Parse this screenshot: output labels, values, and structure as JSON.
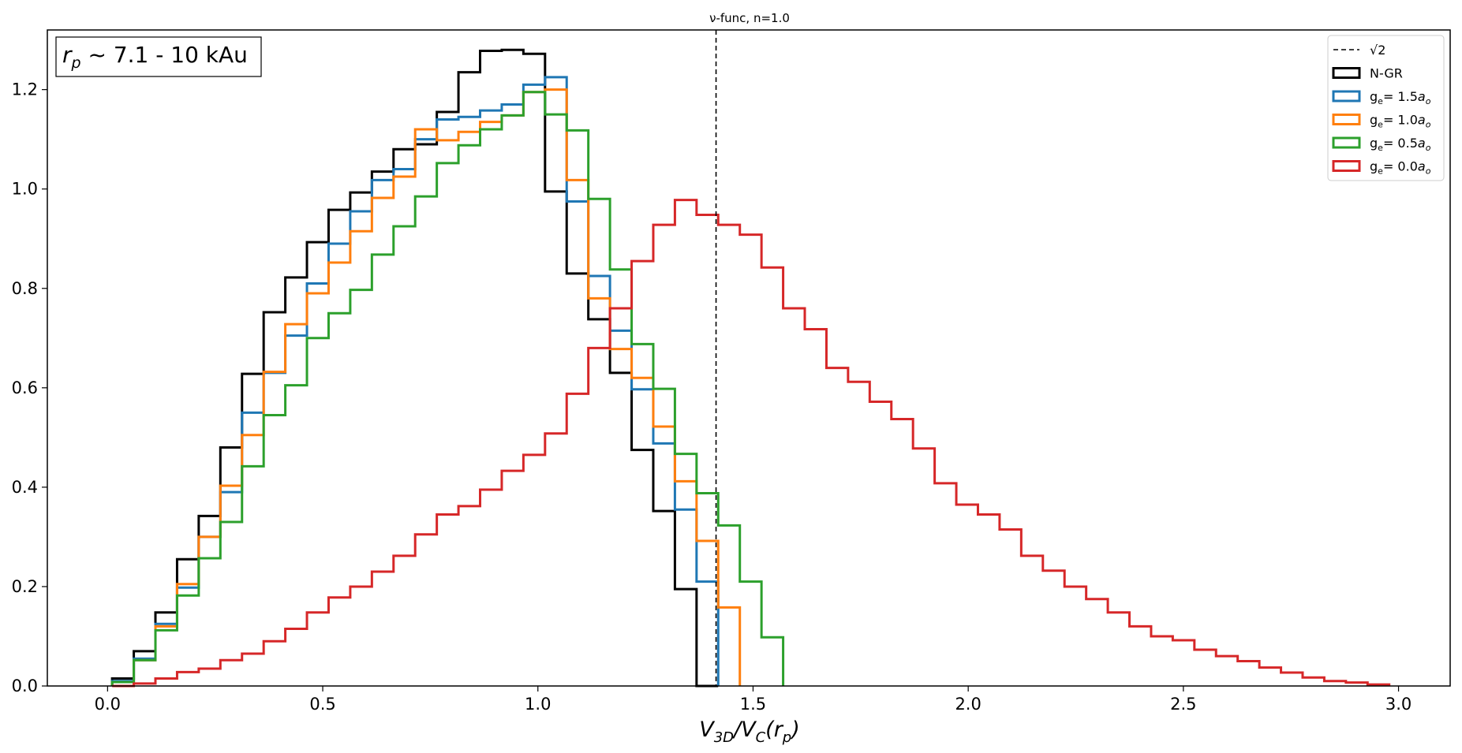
{
  "chart_data": {
    "type": "histogram-step",
    "title": "ν-func, n=1.0",
    "xlabel": "V3D/VC(rp)",
    "ylabel": "",
    "xlim": [
      -0.14,
      3.12
    ],
    "ylim": [
      0,
      1.32
    ],
    "xticks": [
      0.0,
      0.5,
      1.0,
      1.5,
      2.0,
      2.5,
      3.0
    ],
    "xtick_labels": [
      "0.0",
      "0.5",
      "1.0",
      "1.5",
      "2.0",
      "2.5",
      "3.0"
    ],
    "yticks": [
      0.0,
      0.2,
      0.4,
      0.6,
      0.8,
      1.0,
      1.2
    ],
    "ytick_labels": [
      "0.0",
      "0.2",
      "0.4",
      "0.6",
      "0.8",
      "1.0",
      "1.2"
    ],
    "grid": false,
    "legend_position": "top-right",
    "annotation": {
      "prefix": "r",
      "sub": "p",
      "text": " ~  7.1 - 10 kAu"
    },
    "vline": {
      "x": 1.414,
      "label": "√2",
      "color": "#000000",
      "style": "dashed"
    },
    "bin_start": 0.0106,
    "bin_width": 0.0503,
    "series": [
      {
        "name": "N-GR",
        "color": "#000000",
        "values": [
          0.015,
          0.07,
          0.148,
          0.255,
          0.342,
          0.48,
          0.628,
          0.752,
          0.822,
          0.893,
          0.958,
          0.993,
          1.035,
          1.08,
          1.09,
          1.155,
          1.235,
          1.278,
          1.28,
          1.272,
          0.995,
          0.83,
          0.738,
          0.63,
          0.475,
          0.352,
          0.195,
          0.0
        ]
      },
      {
        "name": "g_e= 1.5a_o",
        "color": "#1f77b4",
        "values": [
          0.01,
          0.055,
          0.125,
          0.198,
          0.3,
          0.39,
          0.55,
          0.63,
          0.705,
          0.81,
          0.89,
          0.955,
          1.018,
          1.04,
          1.1,
          1.14,
          1.145,
          1.158,
          1.17,
          1.21,
          1.225,
          0.975,
          0.825,
          0.715,
          0.597,
          0.488,
          0.355,
          0.21
        ]
      },
      {
        "name": "g_e= 1.0a_o",
        "color": "#ff7f0e",
        "values": [
          0.008,
          0.052,
          0.12,
          0.205,
          0.3,
          0.403,
          0.505,
          0.632,
          0.728,
          0.79,
          0.852,
          0.915,
          0.982,
          1.025,
          1.12,
          1.098,
          1.115,
          1.135,
          1.148,
          1.195,
          1.2,
          1.018,
          0.78,
          0.678,
          0.62,
          0.522,
          0.412,
          0.292,
          0.158
        ]
      },
      {
        "name": "g_e= 0.5a_o",
        "color": "#2ca02c",
        "values": [
          0.008,
          0.052,
          0.112,
          0.182,
          0.257,
          0.33,
          0.442,
          0.545,
          0.605,
          0.7,
          0.75,
          0.797,
          0.868,
          0.925,
          0.985,
          1.052,
          1.088,
          1.12,
          1.148,
          1.195,
          1.15,
          1.118,
          0.98,
          0.838,
          0.688,
          0.598,
          0.467,
          0.388,
          0.323,
          0.21,
          0.098
        ]
      },
      {
        "name": "g_e= 0.0a_o",
        "color": "#d62728",
        "values": [
          0.0,
          0.005,
          0.015,
          0.028,
          0.035,
          0.052,
          0.065,
          0.09,
          0.115,
          0.148,
          0.178,
          0.2,
          0.23,
          0.262,
          0.305,
          0.345,
          0.362,
          0.395,
          0.433,
          0.465,
          0.508,
          0.588,
          0.68,
          0.76,
          0.855,
          0.928,
          0.978,
          0.948,
          0.928,
          0.908,
          0.842,
          0.76,
          0.718,
          0.64,
          0.612,
          0.572,
          0.537,
          0.478,
          0.408,
          0.365,
          0.345,
          0.315,
          0.262,
          0.232,
          0.2,
          0.175,
          0.148,
          0.12,
          0.1,
          0.092,
          0.073,
          0.06,
          0.05,
          0.037,
          0.027,
          0.017,
          0.01,
          0.007,
          0.003
        ]
      }
    ]
  }
}
